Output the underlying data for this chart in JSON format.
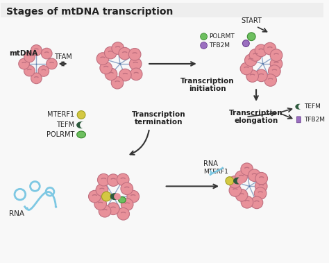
{
  "title": "Stages of mtDNA transcription",
  "title_fontsize": 10,
  "title_fontweight": "bold",
  "bg_color": "#eeeeee",
  "labels": {
    "mtDNA": "mtDNA",
    "TFAM": "TFAM",
    "START": "START",
    "POLRMT": "POLRMT",
    "TFB2M_init": "TFB2M",
    "transcription_initiation": "Transcription\ninitiation",
    "MTERF1": "MTERF1",
    "TEFM_legend": "TEFM",
    "POLRMT_legend": "POLRMT",
    "transcription_termination": "Transcription\ntermination",
    "transcription_elongation": "Transcription\nelongation",
    "TEFM_elon": "TEFM",
    "TFB2M_elon": "TFB2M",
    "RNA_bottom_left": "RNA",
    "RNA_bottom_mid": "RNA",
    "MTERF1_bottom": "MTERF1"
  },
  "colors": {
    "pink_nucleosome": "#e8919a",
    "blue_dna": "#4a6fa5",
    "green_polrmt": "#6dbf5f",
    "dark_green_tefm": "#2d5a3d",
    "purple_tfb2m": "#9b6fc0",
    "yellow_mterf1": "#d4c842",
    "light_blue_rna": "#7ec8e3",
    "arrow_color": "#333333",
    "text_color": "#222222",
    "legend_bg": "#f8f8f8"
  },
  "figsize": [
    4.74,
    3.79
  ],
  "dpi": 100
}
